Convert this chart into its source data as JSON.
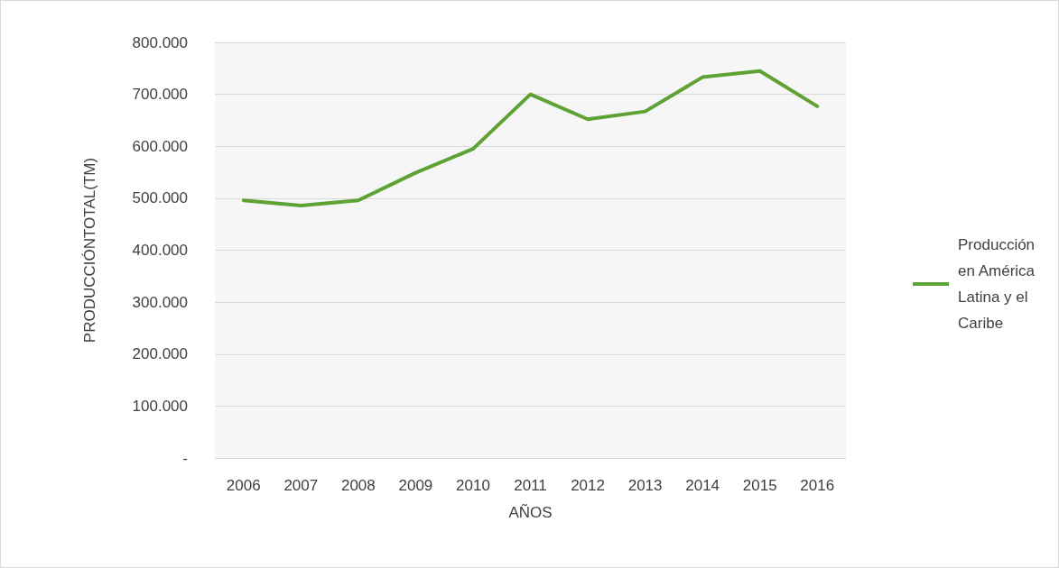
{
  "chart_data": {
    "type": "line",
    "xlabel": "AÑOS",
    "ylabel": "PRODUCCIÓNTOTAL(TM)",
    "categories": [
      "2006",
      "2007",
      "2008",
      "2009",
      "2010",
      "2011",
      "2012",
      "2013",
      "2014",
      "2015",
      "2016"
    ],
    "series": [
      {
        "name": "Producción en América Latina y el Caribe",
        "color": "#5ea234",
        "values": [
          496000,
          486000,
          496000,
          549000,
          595000,
          700000,
          652000,
          667000,
          733000,
          745000,
          677000
        ]
      }
    ],
    "ylim": [
      0,
      800000
    ],
    "yticks": [
      {
        "value": 0,
        "label": "-"
      },
      {
        "value": 100000,
        "label": "100.000"
      },
      {
        "value": 200000,
        "label": "200.000"
      },
      {
        "value": 300000,
        "label": "300.000"
      },
      {
        "value": 400000,
        "label": "400.000"
      },
      {
        "value": 500000,
        "label": "500.000"
      },
      {
        "value": 600000,
        "label": "600.000"
      },
      {
        "value": 700000,
        "label": "700.000"
      },
      {
        "value": 800000,
        "label": "800.000"
      }
    ],
    "grid": "y",
    "legend": "right",
    "marker": "none",
    "line_style": "solid"
  }
}
